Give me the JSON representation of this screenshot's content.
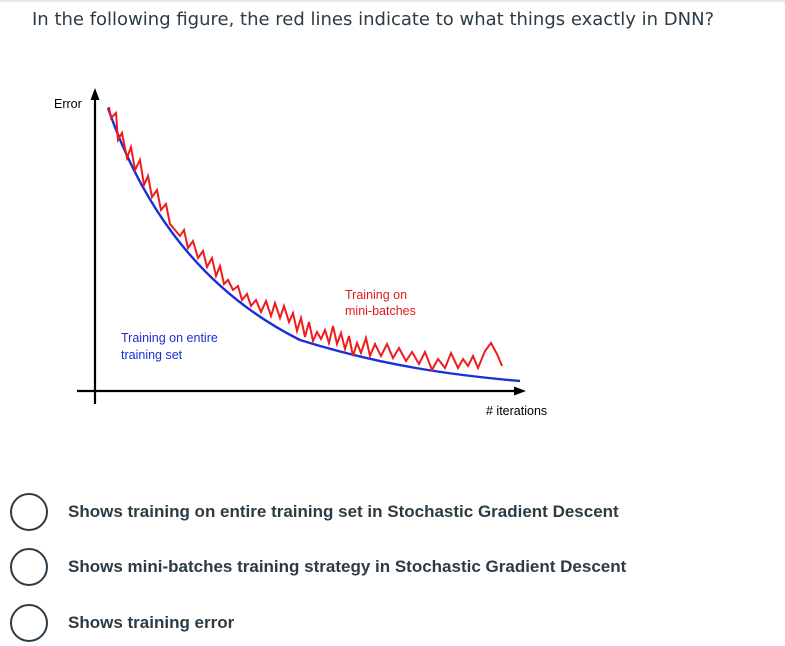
{
  "question": {
    "text": "In the following figure, the red lines indicate to what things exactly in DNN?"
  },
  "figure": {
    "y_axis_label": "Error",
    "x_axis_label": "# iterations",
    "blue_curve_label_line1": "Training on entire",
    "blue_curve_label_line2": "training set",
    "red_curve_label_line1": "Training on",
    "red_curve_label_line2": "mini-batches",
    "colors": {
      "blue_curve": "#1a2fd6",
      "red_curve": "#ee1c1c",
      "blue_label": "#1a2fd6",
      "red_label": "#e21b1b",
      "axis": "#000000"
    }
  },
  "answers": [
    {
      "label": "Shows training on entire training set in Stochastic Gradient Descent",
      "selected": false
    },
    {
      "label": "Shows mini-batches training strategy in Stochastic Gradient Descent",
      "selected": false
    },
    {
      "label": "Shows training error",
      "selected": false
    }
  ]
}
